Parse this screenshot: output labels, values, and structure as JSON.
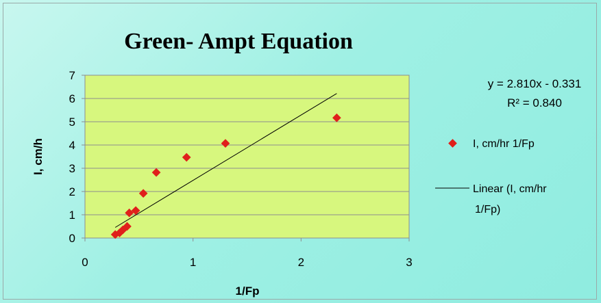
{
  "chart_data": {
    "type": "scatter",
    "title": "Green- Ampt Equation",
    "xlabel": "1/Fp",
    "ylabel": "I, cm/h",
    "xlim": [
      0,
      3
    ],
    "ylim": [
      0,
      7
    ],
    "xticks": [
      "0",
      "1",
      "2",
      "3"
    ],
    "yticks": [
      "0",
      "1",
      "2",
      "3",
      "4",
      "5",
      "6",
      "7"
    ],
    "grid": true,
    "legend_position": "right",
    "plot_background": "#d7f77e",
    "series": [
      {
        "name": "I, cm/hr 1/Fp",
        "color": "#e0201b",
        "marker": "diamond",
        "x": [
          0.28,
          0.32,
          0.35,
          0.39,
          0.41,
          0.47,
          0.54,
          0.66,
          0.94,
          1.3,
          2.33
        ],
        "y": [
          0.15,
          0.22,
          0.35,
          0.5,
          1.08,
          1.18,
          1.92,
          2.82,
          3.47,
          4.07,
          5.17
        ]
      }
    ],
    "trendline": {
      "name": "Linear (I, cm/hr 1/Fp)",
      "legend_lines": [
        "Linear (I, cm/hr",
        "1/Fp)"
      ],
      "color": "#000000",
      "slope": 2.81,
      "intercept": -0.331,
      "x_range": [
        0.28,
        2.33
      ],
      "equation": "y = 2.810x - 0.331",
      "r_squared": "R² = 0.840"
    }
  }
}
